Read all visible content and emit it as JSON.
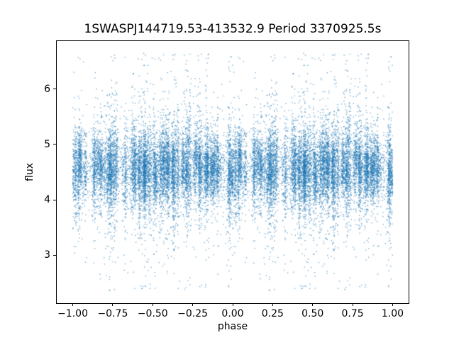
{
  "chart_data": {
    "type": "scatter",
    "title": "1SWASPJ144719.53-413532.9 Period 3370925.5s",
    "xlabel": "phase",
    "ylabel": "flux",
    "xlim": [
      -1.1,
      1.1
    ],
    "ylim": [
      2.13,
      6.87
    ],
    "xticks": {
      "values": [
        -1.0,
        -0.75,
        -0.5,
        -0.25,
        0.0,
        0.25,
        0.5,
        0.75,
        1.0
      ],
      "labels": [
        "−1.00",
        "−0.75",
        "−0.50",
        "−0.25",
        "0.00",
        "0.25",
        "0.50",
        "0.75",
        "1.00"
      ]
    },
    "yticks": {
      "values": [
        3,
        4,
        5,
        6
      ],
      "labels": [
        "3",
        "4",
        "5",
        "6"
      ]
    },
    "grid": false,
    "legend": null,
    "marker_color": "#1f77b4",
    "marker_alpha": 0.6,
    "marker_size_px": 1.4,
    "background": "#ffffff",
    "distribution": {
      "description": "Folded light curve: each observation plotted at phase p in [0,1) and duplicated at p-1, giving dense vertical stripes of points across phase -1..1.",
      "n_points": 22000,
      "seed": 42,
      "phase_range": [
        -1.0,
        1.0
      ],
      "n_phase_clusters": 150,
      "cluster_phase_sigma": 0.005,
      "uniform_fraction": 0.15,
      "flux_mean": 4.55,
      "flux_core_sigma": 0.32,
      "tail_fraction": 0.17,
      "tail_sigma": 0.82,
      "flux_min": 2.35,
      "flux_max": 6.65
    }
  }
}
